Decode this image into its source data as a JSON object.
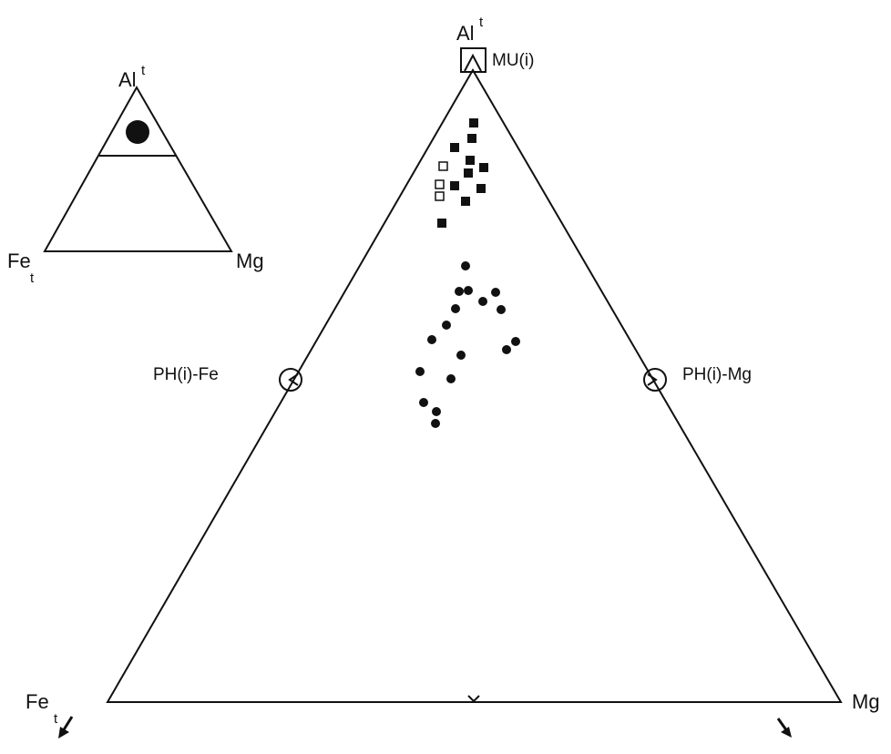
{
  "colors": {
    "ink": "#111111",
    "background": "#ffffff"
  },
  "inset": {
    "apex_label": "Al",
    "apex_sup": "t",
    "left_label": "Fe",
    "left_sub": "t",
    "right_label": "Mg"
  },
  "main": {
    "apex_label": "Al",
    "apex_sup": "t",
    "left_label": "Fe",
    "left_sub": "t",
    "right_label": "Mg",
    "mu_label": "MU(i)",
    "ph_fe_label": "PH(i)-Fe",
    "ph_mg_label": "PH(i)-Mg"
  },
  "legend_icons": {
    "filled_square": "filled-square-marker",
    "open_square": "open-square-marker",
    "filled_circle": "filled-circle-marker"
  }
}
